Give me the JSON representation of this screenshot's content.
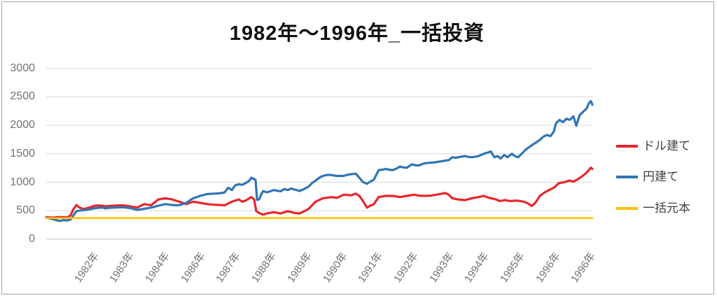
{
  "chart_data": {
    "type": "line",
    "title": "1982年～1996年_一括投資",
    "xlabel": "",
    "ylabel": "",
    "x_range": [
      1982,
      1997
    ],
    "ylim": [
      0,
      3000
    ],
    "grid": true,
    "legend_position": "right",
    "gridline_color": "#d9d9d9",
    "axis_line_color": "#bfbfbf",
    "axis_text_color": "#737373",
    "frame_border_color": "#a6a6a6",
    "y_axis": {
      "ticks": [
        0,
        500,
        1000,
        1500,
        2000,
        2500,
        3000
      ]
    },
    "x_axis": {
      "labels": [
        "1982年",
        "1983年",
        "1984年",
        "1986年",
        "1987年",
        "1988年",
        "1989年",
        "1990年",
        "1991年",
        "1992年",
        "1993年",
        "1994年",
        "1995年",
        "1996年",
        "1996年"
      ]
    },
    "series": [
      {
        "name": "ドル建て",
        "color": "#e8262b",
        "points": [
          [
            1982.0,
            385
          ],
          [
            1982.19,
            380
          ],
          [
            1982.38,
            390
          ],
          [
            1982.58,
            383
          ],
          [
            1982.67,
            420
          ],
          [
            1982.75,
            530
          ],
          [
            1982.83,
            600
          ],
          [
            1982.9,
            560
          ],
          [
            1983.02,
            530
          ],
          [
            1983.15,
            548
          ],
          [
            1983.35,
            590
          ],
          [
            1983.54,
            590
          ],
          [
            1983.63,
            575
          ],
          [
            1983.73,
            585
          ],
          [
            1983.92,
            592
          ],
          [
            1984.12,
            595
          ],
          [
            1984.31,
            575
          ],
          [
            1984.5,
            555
          ],
          [
            1984.69,
            615
          ],
          [
            1984.88,
            596
          ],
          [
            1985.08,
            698
          ],
          [
            1985.27,
            719
          ],
          [
            1985.46,
            698
          ],
          [
            1985.65,
            658
          ],
          [
            1985.85,
            616
          ],
          [
            1986.04,
            658
          ],
          [
            1986.23,
            637
          ],
          [
            1986.42,
            616
          ],
          [
            1986.62,
            605
          ],
          [
            1986.9,
            596
          ],
          [
            1987.1,
            658
          ],
          [
            1987.29,
            698
          ],
          [
            1987.38,
            658
          ],
          [
            1987.48,
            678
          ],
          [
            1987.58,
            719
          ],
          [
            1987.63,
            739
          ],
          [
            1987.71,
            700
          ],
          [
            1987.77,
            493
          ],
          [
            1987.87,
            452
          ],
          [
            1987.96,
            431
          ],
          [
            1988.06,
            452
          ],
          [
            1988.25,
            473
          ],
          [
            1988.44,
            452
          ],
          [
            1988.63,
            493
          ],
          [
            1988.83,
            460
          ],
          [
            1988.96,
            452
          ],
          [
            1989.12,
            500
          ],
          [
            1989.21,
            535
          ],
          [
            1989.4,
            658
          ],
          [
            1989.6,
            719
          ],
          [
            1989.85,
            739
          ],
          [
            1989.98,
            725
          ],
          [
            1990.17,
            781
          ],
          [
            1990.37,
            770
          ],
          [
            1990.5,
            800
          ],
          [
            1990.6,
            760
          ],
          [
            1990.69,
            678
          ],
          [
            1990.81,
            554
          ],
          [
            1990.9,
            590
          ],
          [
            1991.0,
            616
          ],
          [
            1991.13,
            739
          ],
          [
            1991.33,
            760
          ],
          [
            1991.52,
            760
          ],
          [
            1991.71,
            739
          ],
          [
            1991.9,
            760
          ],
          [
            1992.1,
            781
          ],
          [
            1992.23,
            765
          ],
          [
            1992.38,
            760
          ],
          [
            1992.58,
            765
          ],
          [
            1992.83,
            795
          ],
          [
            1992.96,
            809
          ],
          [
            1993.06,
            780
          ],
          [
            1993.15,
            719
          ],
          [
            1993.31,
            698
          ],
          [
            1993.5,
            686
          ],
          [
            1993.69,
            719
          ],
          [
            1993.88,
            739
          ],
          [
            1994.02,
            760
          ],
          [
            1994.15,
            727
          ],
          [
            1994.27,
            710
          ],
          [
            1994.35,
            698
          ],
          [
            1994.46,
            670
          ],
          [
            1994.6,
            686
          ],
          [
            1994.73,
            670
          ],
          [
            1994.92,
            678
          ],
          [
            1995.12,
            658
          ],
          [
            1995.23,
            628
          ],
          [
            1995.33,
            584
          ],
          [
            1995.42,
            628
          ],
          [
            1995.5,
            700
          ],
          [
            1995.56,
            760
          ],
          [
            1995.69,
            822
          ],
          [
            1995.81,
            862
          ],
          [
            1995.94,
            903
          ],
          [
            1996.08,
            985
          ],
          [
            1996.23,
            1000
          ],
          [
            1996.37,
            1030
          ],
          [
            1996.48,
            1010
          ],
          [
            1996.62,
            1060
          ],
          [
            1996.71,
            1100
          ],
          [
            1996.81,
            1150
          ],
          [
            1996.9,
            1210
          ],
          [
            1996.96,
            1255
          ],
          [
            1997.0,
            1235
          ]
        ]
      },
      {
        "name": "円建て",
        "color": "#2e75b6",
        "points": [
          [
            1982.0,
            380
          ],
          [
            1982.19,
            350
          ],
          [
            1982.29,
            330
          ],
          [
            1982.38,
            320
          ],
          [
            1982.48,
            335
          ],
          [
            1982.58,
            328
          ],
          [
            1982.67,
            345
          ],
          [
            1982.75,
            420
          ],
          [
            1982.83,
            490
          ],
          [
            1982.9,
            500
          ],
          [
            1983.02,
            510
          ],
          [
            1983.15,
            520
          ],
          [
            1983.35,
            545
          ],
          [
            1983.54,
            555
          ],
          [
            1983.63,
            540
          ],
          [
            1983.73,
            550
          ],
          [
            1983.92,
            555
          ],
          [
            1984.12,
            560
          ],
          [
            1984.31,
            545
          ],
          [
            1984.5,
            514
          ],
          [
            1984.69,
            535
          ],
          [
            1984.88,
            554
          ],
          [
            1985.08,
            588
          ],
          [
            1985.27,
            616
          ],
          [
            1985.46,
            600
          ],
          [
            1985.65,
            596
          ],
          [
            1985.85,
            637
          ],
          [
            1985.94,
            680
          ],
          [
            1986.04,
            719
          ],
          [
            1986.23,
            760
          ],
          [
            1986.42,
            792
          ],
          [
            1986.62,
            800
          ],
          [
            1986.81,
            810
          ],
          [
            1986.9,
            822
          ],
          [
            1987.0,
            904
          ],
          [
            1987.1,
            862
          ],
          [
            1987.19,
            945
          ],
          [
            1987.29,
            965
          ],
          [
            1987.38,
            955
          ],
          [
            1987.48,
            985
          ],
          [
            1987.58,
            1027
          ],
          [
            1987.63,
            1080
          ],
          [
            1987.71,
            1055
          ],
          [
            1987.75,
            1040
          ],
          [
            1987.79,
            690
          ],
          [
            1987.85,
            700
          ],
          [
            1987.9,
            780
          ],
          [
            1987.96,
            845
          ],
          [
            1988.06,
            822
          ],
          [
            1988.15,
            840
          ],
          [
            1988.25,
            862
          ],
          [
            1988.35,
            850
          ],
          [
            1988.44,
            842
          ],
          [
            1988.54,
            882
          ],
          [
            1988.63,
            862
          ],
          [
            1988.73,
            890
          ],
          [
            1988.83,
            870
          ],
          [
            1988.96,
            846
          ],
          [
            1989.08,
            880
          ],
          [
            1989.21,
            925
          ],
          [
            1989.31,
            990
          ],
          [
            1989.4,
            1028
          ],
          [
            1989.5,
            1080
          ],
          [
            1989.6,
            1110
          ],
          [
            1989.69,
            1125
          ],
          [
            1989.79,
            1130
          ],
          [
            1989.98,
            1110
          ],
          [
            1990.17,
            1110
          ],
          [
            1990.27,
            1130
          ],
          [
            1990.37,
            1140
          ],
          [
            1990.5,
            1151
          ],
          [
            1990.6,
            1080
          ],
          [
            1990.69,
            1007
          ],
          [
            1990.81,
            973
          ],
          [
            1990.9,
            1010
          ],
          [
            1991.0,
            1047
          ],
          [
            1991.13,
            1212
          ],
          [
            1991.23,
            1220
          ],
          [
            1991.33,
            1232
          ],
          [
            1991.42,
            1220
          ],
          [
            1991.52,
            1212
          ],
          [
            1991.62,
            1240
          ],
          [
            1991.71,
            1274
          ],
          [
            1991.81,
            1260
          ],
          [
            1991.9,
            1253
          ],
          [
            1992.04,
            1315
          ],
          [
            1992.13,
            1300
          ],
          [
            1992.23,
            1294
          ],
          [
            1992.33,
            1320
          ],
          [
            1992.42,
            1335
          ],
          [
            1992.62,
            1345
          ],
          [
            1992.73,
            1355
          ],
          [
            1992.87,
            1370
          ],
          [
            1993.06,
            1390
          ],
          [
            1993.15,
            1438
          ],
          [
            1993.25,
            1430
          ],
          [
            1993.4,
            1450
          ],
          [
            1993.5,
            1459
          ],
          [
            1993.6,
            1445
          ],
          [
            1993.69,
            1438
          ],
          [
            1993.88,
            1459
          ],
          [
            1993.98,
            1490
          ],
          [
            1994.02,
            1500
          ],
          [
            1994.12,
            1520
          ],
          [
            1994.21,
            1540
          ],
          [
            1994.27,
            1480
          ],
          [
            1994.31,
            1438
          ],
          [
            1994.4,
            1459
          ],
          [
            1994.48,
            1417
          ],
          [
            1994.58,
            1479
          ],
          [
            1994.67,
            1438
          ],
          [
            1994.79,
            1500
          ],
          [
            1994.87,
            1459
          ],
          [
            1994.96,
            1438
          ],
          [
            1995.06,
            1500
          ],
          [
            1995.15,
            1561
          ],
          [
            1995.25,
            1610
          ],
          [
            1995.37,
            1664
          ],
          [
            1995.46,
            1700
          ],
          [
            1995.56,
            1746
          ],
          [
            1995.65,
            1800
          ],
          [
            1995.75,
            1830
          ],
          [
            1995.85,
            1810
          ],
          [
            1995.94,
            1890
          ],
          [
            1996.0,
            2033
          ],
          [
            1996.1,
            2095
          ],
          [
            1996.19,
            2054
          ],
          [
            1996.29,
            2115
          ],
          [
            1996.38,
            2095
          ],
          [
            1996.48,
            2157
          ],
          [
            1996.56,
            1993
          ],
          [
            1996.65,
            2177
          ],
          [
            1996.75,
            2239
          ],
          [
            1996.85,
            2300
          ],
          [
            1996.9,
            2383
          ],
          [
            1996.96,
            2424
          ],
          [
            1997.0,
            2360
          ]
        ]
      },
      {
        "name": "一括元本",
        "color": "#ffc000",
        "points": [
          [
            1982.0,
            370
          ],
          [
            1997.0,
            370
          ]
        ]
      }
    ]
  }
}
